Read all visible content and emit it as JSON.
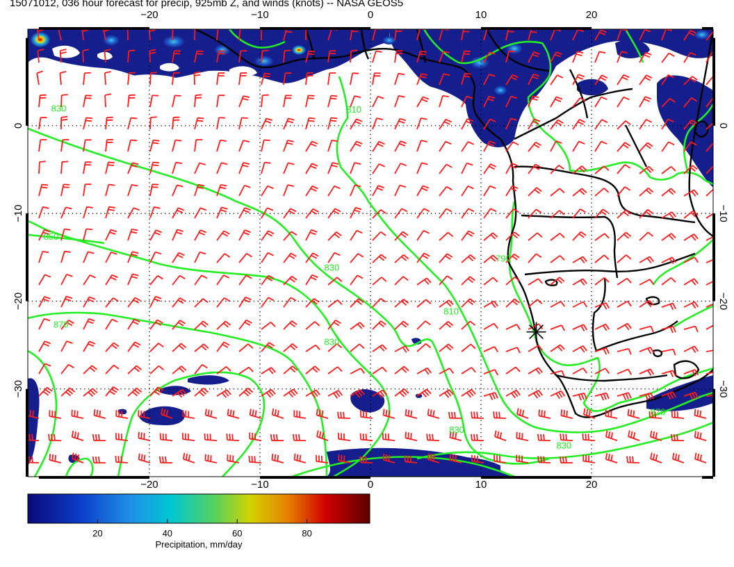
{
  "title": "15071012, 036 hour forecast for precip, 925mb Z, and winds (knots) -- NASA GEOS5",
  "colors": {
    "wind_barbs": "#ff1a1a",
    "height_contours": "#22ee22",
    "coastlines": "#000000",
    "precip_low": "#0a0a78",
    "precip_mid": "#00c8d0",
    "precip_high": "#5a0000"
  },
  "map": {
    "lon_range": [
      -31,
      31
    ],
    "lat_range": [
      -40,
      11
    ],
    "lon_ticks": [
      -20,
      -10,
      0,
      10,
      20
    ],
    "lat_ticks": [
      0,
      -10,
      -20,
      -30
    ],
    "lon_tick_labels": [
      "−20",
      "−10",
      "0",
      "10",
      "20"
    ],
    "lat_tick_labels": [
      "0",
      "−10",
      "−20",
      "−30"
    ],
    "grid": "dotted",
    "contour_labels": [
      {
        "text": "850",
        "lon": -28.9,
        "lat": -13.0
      },
      {
        "text": "870",
        "lon": -28.0,
        "lat": -23.0
      },
      {
        "text": "830",
        "lon": -28.2,
        "lat": 1.6
      },
      {
        "text": "830",
        "lon": -3.5,
        "lat": -16.5
      },
      {
        "text": "830",
        "lon": -3.5,
        "lat": -25.0
      },
      {
        "text": "830",
        "lon": 7.8,
        "lat": -35.0
      },
      {
        "text": "810",
        "lon": -1.5,
        "lat": 1.5
      },
      {
        "text": "810",
        "lon": 7.3,
        "lat": -21.5
      },
      {
        "text": "830",
        "lon": 17.5,
        "lat": -36.8
      },
      {
        "text": "790",
        "lon": 12.0,
        "lat": -15.5
      },
      {
        "text": "870",
        "lon": 26.0,
        "lat": -33.0
      }
    ],
    "marker": {
      "lon": 15.0,
      "lat": -23.5,
      "name": "star"
    }
  },
  "colorbar": {
    "label": "Precipitation, mm/day",
    "ticks": [
      20,
      40,
      60,
      80
    ],
    "range": [
      0,
      98
    ]
  }
}
